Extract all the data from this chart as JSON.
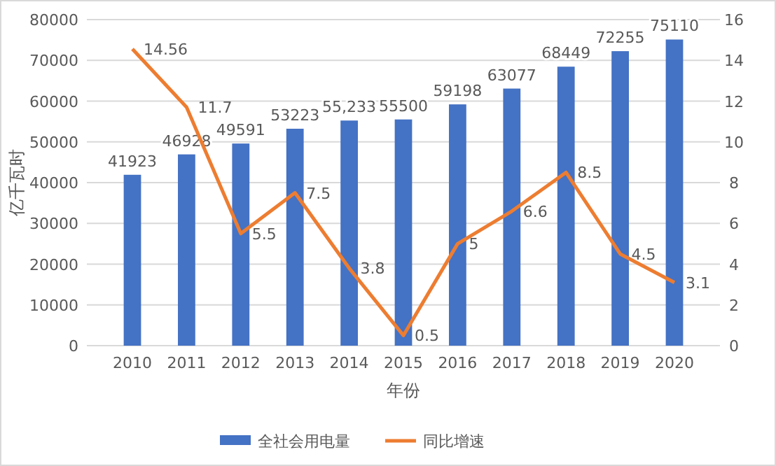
{
  "chart_data": {
    "type": "bar",
    "xlabel": "年份",
    "ylabel": "亿千瓦时",
    "categories": [
      "2010",
      "2011",
      "2012",
      "2013",
      "2014",
      "2015",
      "2016",
      "2017",
      "2018",
      "2019",
      "2020"
    ],
    "series": [
      {
        "name": "全社会用电量",
        "color": "#4472c4",
        "values": [
          41923,
          46928,
          49591,
          53223,
          55233,
          55500,
          59198,
          63077,
          68449,
          72255,
          75110
        ],
        "value_labels": [
          "41923",
          "46928",
          "49591",
          "53223",
          "55,233",
          "55500",
          "59198",
          "63077",
          "68449",
          "72255",
          "75110"
        ]
      },
      {
        "name": "同比增速",
        "type": "line",
        "axis": "y2",
        "color": "#ed7d31",
        "values": [
          14.56,
          11.7,
          5.5,
          7.5,
          3.8,
          0.5,
          5,
          6.6,
          8.5,
          4.5,
          3.1
        ],
        "value_labels": [
          "14.56",
          "11.7",
          "5.5",
          "7.5",
          "3.8",
          "0.5",
          "5",
          "6.6",
          "8.5",
          "4.5",
          "3.1"
        ]
      }
    ],
    "ylim": [
      0,
      80000
    ],
    "yticks": [
      0,
      10000,
      20000,
      30000,
      40000,
      50000,
      60000,
      70000,
      80000
    ],
    "y2lim": [
      0,
      16
    ],
    "y2ticks": [
      0,
      2,
      4,
      6,
      8,
      10,
      12,
      14,
      16
    ],
    "grid": "y",
    "legend": "bottom",
    "marker": "none",
    "line_style": "solid"
  }
}
